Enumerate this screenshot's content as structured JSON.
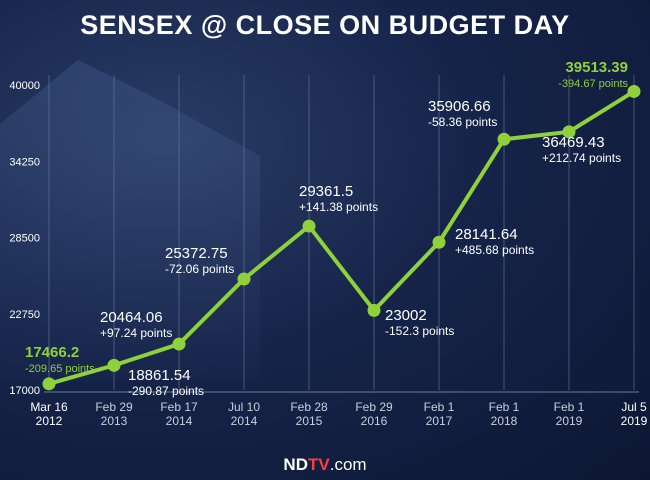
{
  "title": "SENSEX @ CLOSE ON BUDGET DAY",
  "footer": {
    "brand_a": "ND",
    "brand_b": "TV",
    "brand_c": ".com"
  },
  "colors": {
    "line": "#8fd13a",
    "highlight": "#8fd13a",
    "text": "#ffffff",
    "grid": "#6b7a99"
  },
  "chart_data": {
    "type": "line",
    "title": "SENSEX @ CLOSE ON BUDGET DAY",
    "xlabel": "",
    "ylabel": "",
    "ylim": [
      17000,
      40000
    ],
    "yticks": [
      17000,
      22750,
      28500,
      34250,
      40000
    ],
    "grid": "vertical",
    "categories": [
      [
        "Mar 16",
        "2012"
      ],
      [
        "Feb 29",
        "2013"
      ],
      [
        "Feb 17",
        "2014"
      ],
      [
        "Jul 10",
        "2014"
      ],
      [
        "Feb 28",
        "2015"
      ],
      [
        "Feb 29",
        "2016"
      ],
      [
        "Feb 1",
        "2017"
      ],
      [
        "Feb 1",
        "2018"
      ],
      [
        "Feb 1",
        "2019"
      ],
      [
        "Jul 5",
        "2019"
      ]
    ],
    "series": [
      {
        "values": [
          17466.2,
          18861.54,
          20464.06,
          25372.75,
          29361.5,
          23002,
          28141.64,
          35906.66,
          36469.43,
          39513.39
        ],
        "changes": [
          "-209.65 points",
          "-290.87 points",
          "+97.24 points",
          "-72.06 points",
          "+141.38 points",
          "-152.3 points",
          "+485.68 points",
          "-58.36 points",
          "+212.74 points",
          "-394.67 points"
        ],
        "value_labels": [
          "17466.2",
          "18861.54",
          "20464.06",
          "25372.75",
          "29361.5",
          "23002",
          "28141.64",
          "35906.66",
          "36469.43",
          "39513.39"
        ]
      }
    ]
  }
}
